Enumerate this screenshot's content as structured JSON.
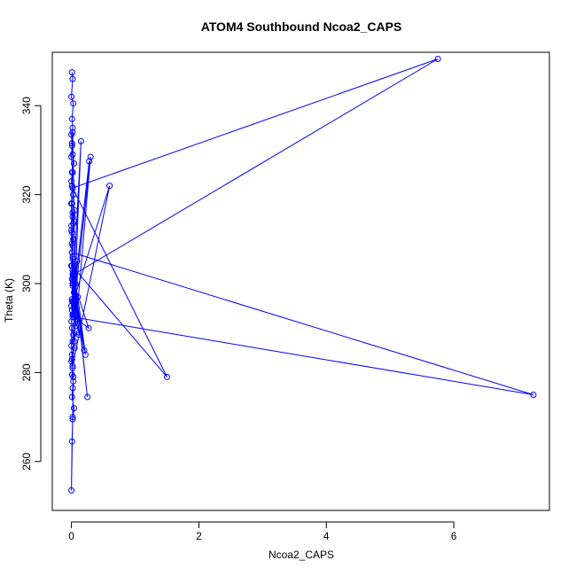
{
  "chart_data": {
    "type": "line",
    "title": "ATOM4 Southbound Ncoa2_CAPS",
    "xlabel": "Ncoa2_CAPS",
    "ylabel": "Theta (K)",
    "xlim": [
      -0.3,
      7.5
    ],
    "ylim": [
      249.0,
      352.0
    ],
    "x_ticks": [
      0,
      2,
      4,
      6
    ],
    "y_ticks": [
      260,
      280,
      300,
      320,
      340
    ],
    "grid": false,
    "legend": "none",
    "marker": "open-circle",
    "colors": {
      "series": "#0000ff",
      "axis": "#000000"
    },
    "series": [
      {
        "x": [
          0.01,
          0.02,
          0.0,
          0.03,
          0.01,
          0.02,
          0.0,
          0.01,
          0.02,
          0.04,
          0.01,
          0.0,
          0.02,
          0.03,
          0.01,
          0.05,
          0.02,
          0.0,
          0.01,
          0.03,
          0.02,
          0.01,
          0.02,
          0.0,
          0.03,
          0.01,
          0.02,
          0.04,
          0.01,
          0.0,
          0.02,
          0.0,
          0.01,
          0.03,
          0.02,
          0.05,
          0.01,
          0.0,
          0.02,
          0.01,
          0.03,
          0.02,
          0.01,
          0.04,
          0.02,
          0.01,
          0.0,
          0.02,
          0.03,
          0.01,
          0.0,
          0.01,
          0.02,
          0.01,
          0.03,
          0.0,
          0.01,
          0.02,
          0.0,
          0.01,
          0.02,
          0.06,
          0.15,
          0.01,
          0.28,
          0.03,
          0.6,
          0.02,
          0.05,
          0.3,
          0.08,
          0.27,
          0.02,
          0.1,
          0.22,
          0.03,
          0.12,
          0.04,
          0.2,
          0.02,
          0.05,
          0.09,
          0.03,
          0.12,
          0.06,
          0.04,
          0.25,
          0.02,
          0.07,
          0.05,
          0.02,
          0.1,
          0.0,
          0.03,
          0.0,
          0.01,
          1.5,
          0.02,
          5.75,
          0.03,
          0.02,
          7.25,
          0.01,
          0.0,
          0.04,
          0.02
        ],
        "y": [
          347.5,
          346.0,
          342.0,
          340.5,
          337.0,
          335.0,
          333.5,
          331.0,
          329.0,
          327.0,
          325.0,
          323.0,
          321.5,
          320.0,
          318.0,
          316.5,
          315.0,
          313.0,
          311.5,
          310.0,
          308.5,
          307.0,
          305.5,
          304.0,
          302.5,
          301.0,
          299.5,
          298.0,
          296.5,
          295.0,
          293.0,
          291.5,
          290.0,
          288.5,
          287.0,
          285.5,
          284.0,
          282.5,
          281.0,
          279.5,
          278.0,
          276.5,
          274.5,
          272.0,
          269.5,
          264.5,
          253.5,
          270.0,
          279.0,
          283.0,
          286.0,
          296.0,
          303.0,
          309.0,
          313.5,
          318.0,
          322.0,
          325.0,
          328.5,
          331.5,
          334.0,
          300.0,
          332.0,
          294.0,
          327.5,
          296.0,
          322.0,
          281.5,
          296.0,
          328.5,
          292.0,
          290.0,
          301.0,
          297.0,
          284.0,
          300.0,
          288.5,
          301.0,
          285.0,
          300.0,
          287.0,
          305.0,
          293.0,
          289.0,
          297.0,
          302.0,
          274.5,
          306.0,
          290.5,
          301.0,
          302.0,
          292.0,
          304.0,
          310.0,
          312.0,
          304.0,
          279.0,
          321.5,
          350.5,
          302.0,
          292.5,
          275.0,
          307.0,
          318.0,
          314.0,
          316.0
        ]
      }
    ]
  }
}
